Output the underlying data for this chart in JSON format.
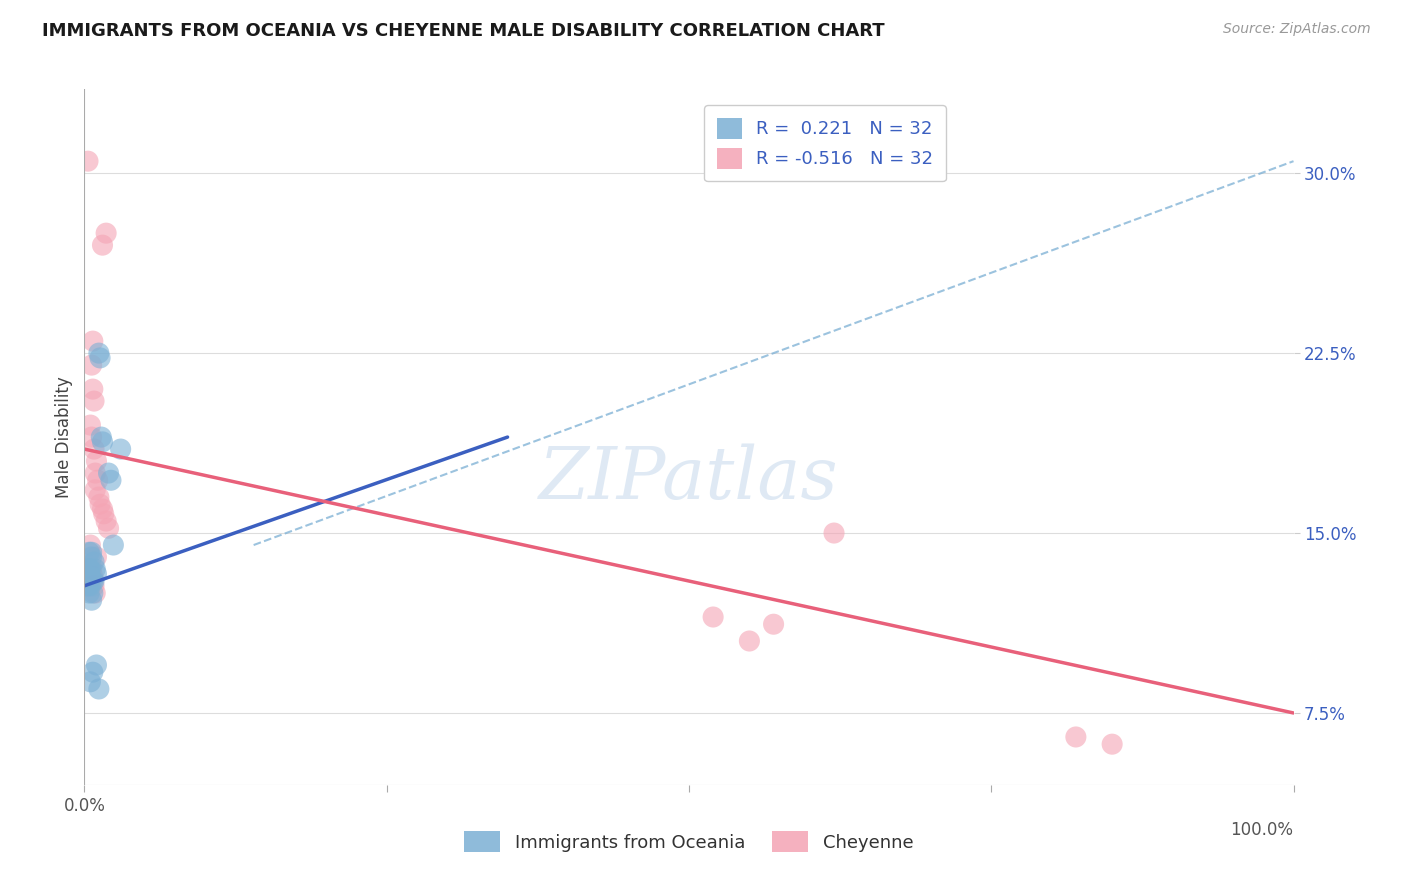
{
  "title": "IMMIGRANTS FROM OCEANIA VS CHEYENNE MALE DISABILITY CORRELATION CHART",
  "source": "Source: ZipAtlas.com",
  "ylabel": "Male Disability",
  "yticks": [
    7.5,
    15.0,
    22.5,
    30.0
  ],
  "ytick_labels": [
    "7.5%",
    "15.0%",
    "22.5%",
    "30.0%"
  ],
  "xmin": 0.0,
  "xmax": 1.0,
  "ymin": 4.5,
  "ymax": 33.5,
  "R_blue": 0.221,
  "N_blue": 32,
  "R_pink": -0.516,
  "N_pink": 32,
  "legend_label_blue": "Immigrants from Oceania",
  "legend_label_pink": "Cheyenne",
  "blue_color": "#7BAFD4",
  "pink_color": "#F4A4B4",
  "blue_line_color": "#3B5FC0",
  "pink_line_color": "#E8607A",
  "blue_scatter": [
    [
      0.005,
      13.5
    ],
    [
      0.007,
      13.0
    ],
    [
      0.008,
      13.8
    ],
    [
      0.006,
      14.2
    ],
    [
      0.005,
      13.2
    ],
    [
      0.009,
      13.5
    ],
    [
      0.006,
      14.0
    ],
    [
      0.004,
      14.2
    ],
    [
      0.01,
      13.3
    ],
    [
      0.007,
      12.5
    ],
    [
      0.012,
      22.5
    ],
    [
      0.013,
      22.3
    ],
    [
      0.014,
      19.0
    ],
    [
      0.015,
      18.8
    ],
    [
      0.02,
      17.5
    ],
    [
      0.022,
      17.2
    ],
    [
      0.024,
      14.5
    ],
    [
      0.03,
      18.5
    ],
    [
      0.004,
      12.5
    ],
    [
      0.005,
      12.8
    ],
    [
      0.006,
      12.2
    ],
    [
      0.008,
      13.0
    ],
    [
      0.003,
      13.5
    ],
    [
      0.004,
      13.5
    ],
    [
      0.003,
      12.8
    ],
    [
      0.003,
      13.0
    ],
    [
      0.002,
      13.2
    ],
    [
      0.002,
      12.9
    ],
    [
      0.005,
      8.8
    ],
    [
      0.007,
      9.2
    ],
    [
      0.01,
      9.5
    ],
    [
      0.012,
      8.5
    ]
  ],
  "pink_scatter": [
    [
      0.003,
      30.5
    ],
    [
      0.015,
      27.0
    ],
    [
      0.018,
      27.5
    ],
    [
      0.007,
      23.0
    ],
    [
      0.006,
      22.0
    ],
    [
      0.007,
      21.0
    ],
    [
      0.008,
      20.5
    ],
    [
      0.005,
      19.5
    ],
    [
      0.006,
      19.0
    ],
    [
      0.008,
      18.5
    ],
    [
      0.01,
      18.0
    ],
    [
      0.009,
      17.5
    ],
    [
      0.011,
      17.2
    ],
    [
      0.009,
      16.8
    ],
    [
      0.012,
      16.5
    ],
    [
      0.013,
      16.2
    ],
    [
      0.015,
      16.0
    ],
    [
      0.016,
      15.8
    ],
    [
      0.018,
      15.5
    ],
    [
      0.02,
      15.2
    ],
    [
      0.006,
      13.5
    ],
    [
      0.007,
      13.2
    ],
    [
      0.008,
      12.8
    ],
    [
      0.009,
      12.5
    ],
    [
      0.52,
      11.5
    ],
    [
      0.57,
      11.2
    ],
    [
      0.55,
      10.5
    ],
    [
      0.82,
      6.5
    ],
    [
      0.85,
      6.2
    ],
    [
      0.62,
      15.0
    ],
    [
      0.005,
      14.5
    ],
    [
      0.01,
      14.0
    ]
  ],
  "blue_trend_x": [
    0.0,
    0.35
  ],
  "blue_trend_y": [
    12.8,
    19.0
  ],
  "pink_trend_x": [
    0.0,
    1.0
  ],
  "pink_trend_y": [
    18.5,
    7.5
  ],
  "dashed_trend_x": [
    0.14,
    1.0
  ],
  "dashed_trend_y": [
    14.5,
    30.5
  ],
  "grid_color": "#DDDDDD",
  "background_color": "#FFFFFF",
  "watermark": "ZIPatlas",
  "watermark_color": "#C5D8EC"
}
